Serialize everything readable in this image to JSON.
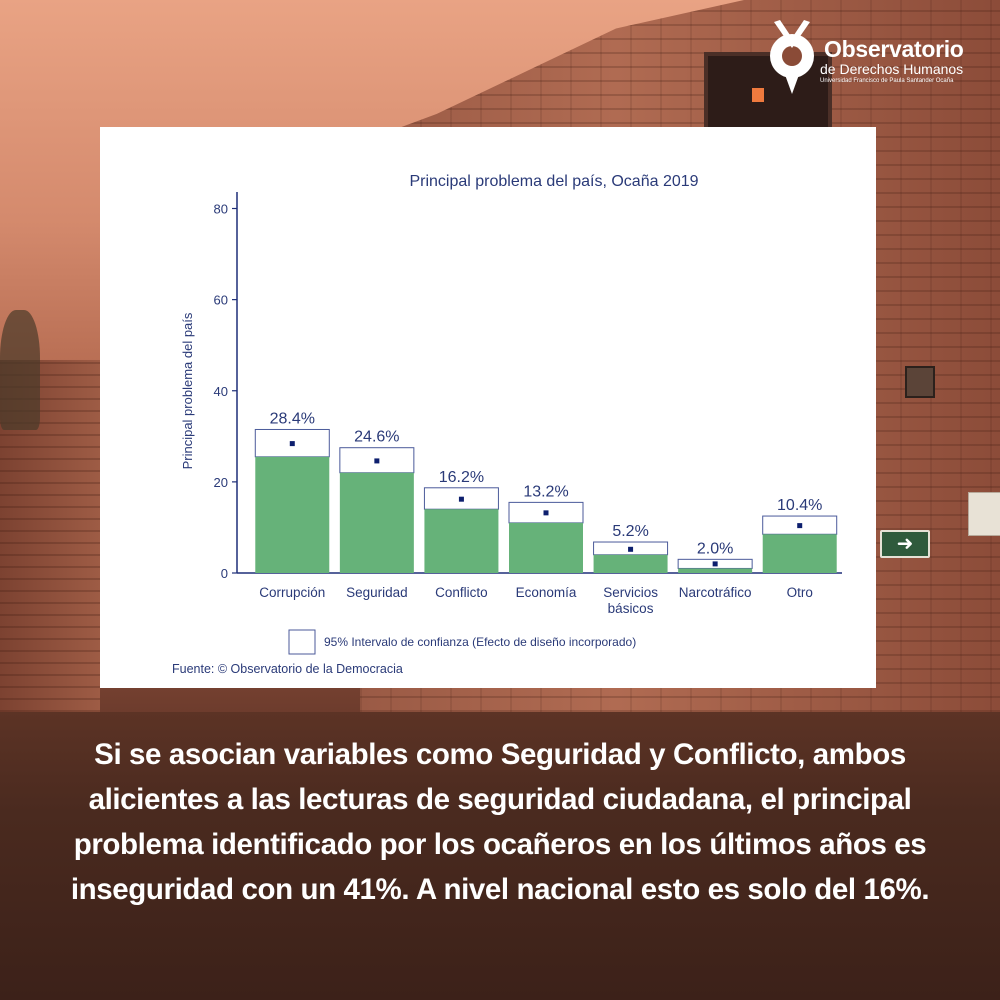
{
  "brand": {
    "name": "Observatorio",
    "subtitle": "de Derechos Humanos",
    "institution": "Universidad Francisco de Paula Santander Ocaña"
  },
  "caption": "Si se asocian variables como Seguridad y Conflicto, ambos alicientes a las lecturas de seguridad ciudadana, el principal problema identificado por los ocañeros en los últimos años es inseguridad con un 41%. A nivel nacional esto es solo del 16%.",
  "colors": {
    "bar": "#66b279",
    "text": "#2a3a78",
    "axis": "#1f2f78",
    "ci_box": "#4b5a9a",
    "point": "#0d1f6e"
  },
  "chart_data": {
    "type": "bar",
    "title": "Principal problema del país, Ocaña 2019",
    "ylabel": "Principal problema del país",
    "ylim": [
      0,
      80
    ],
    "yticks": [
      0,
      20,
      40,
      60,
      80
    ],
    "categories": [
      [
        "Corrupción"
      ],
      [
        "Seguridad"
      ],
      [
        "Conflicto"
      ],
      [
        "Economía"
      ],
      [
        "Servicios",
        "básicos"
      ],
      [
        "Narcotráfico"
      ],
      [
        "Otro"
      ]
    ],
    "values": [
      28.4,
      24.6,
      16.2,
      13.2,
      5.2,
      2.0,
      10.4
    ],
    "value_labels": [
      "28.4%",
      "24.6%",
      "16.2%",
      "13.2%",
      "5.2%",
      "2.0%",
      "10.4%"
    ],
    "ci_lower": [
      25.5,
      22.0,
      14.0,
      11.0,
      4.0,
      1.0,
      8.5
    ],
    "ci_upper": [
      31.5,
      27.5,
      18.7,
      15.5,
      6.8,
      3.0,
      12.5
    ],
    "legend": "95% Intervalo de confianza (Efecto de diseño incorporado)",
    "source": "Fuente: © Observatorio de la Democracia",
    "grid": false
  }
}
